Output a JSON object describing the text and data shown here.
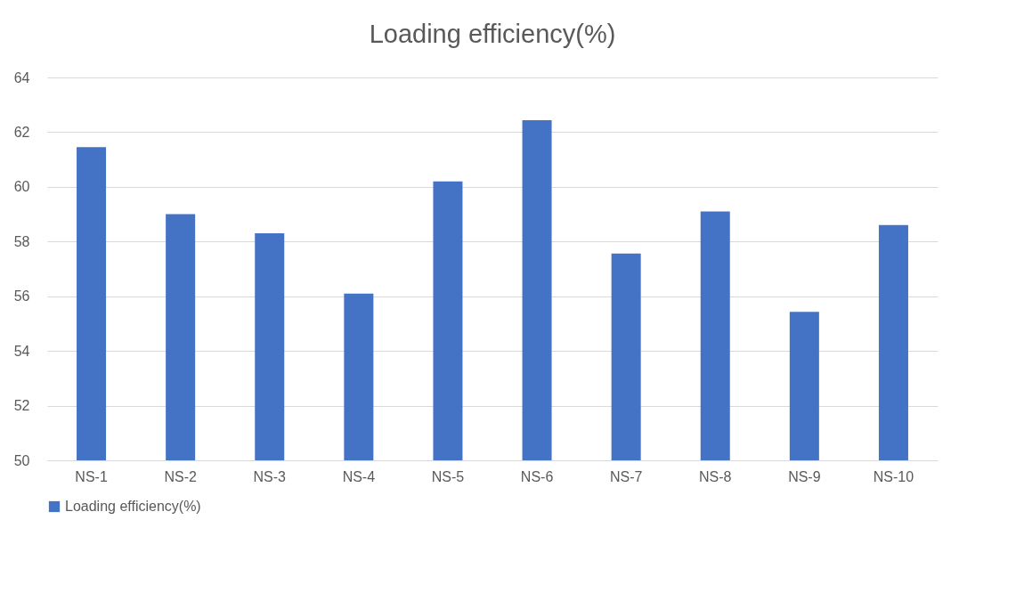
{
  "chart_data": {
    "type": "bar",
    "title": "Loading efficiency(%)",
    "categories": [
      "NS-1",
      "NS-2",
      "NS-3",
      "NS-4",
      "NS-5",
      "NS-6",
      "NS-7",
      "NS-8",
      "NS-9",
      "NS-10"
    ],
    "series": [
      {
        "name": "Loading efficiency(%)",
        "color": "#4472c4",
        "values": [
          61.45,
          59.0,
          58.3,
          56.1,
          60.2,
          62.44,
          57.56,
          59.1,
          55.43,
          58.6
        ]
      }
    ],
    "ylim": [
      50,
      64
    ],
    "yticks": [
      50,
      52,
      54,
      56,
      58,
      60,
      62,
      64
    ],
    "grid": "y",
    "legend": "bottom"
  }
}
